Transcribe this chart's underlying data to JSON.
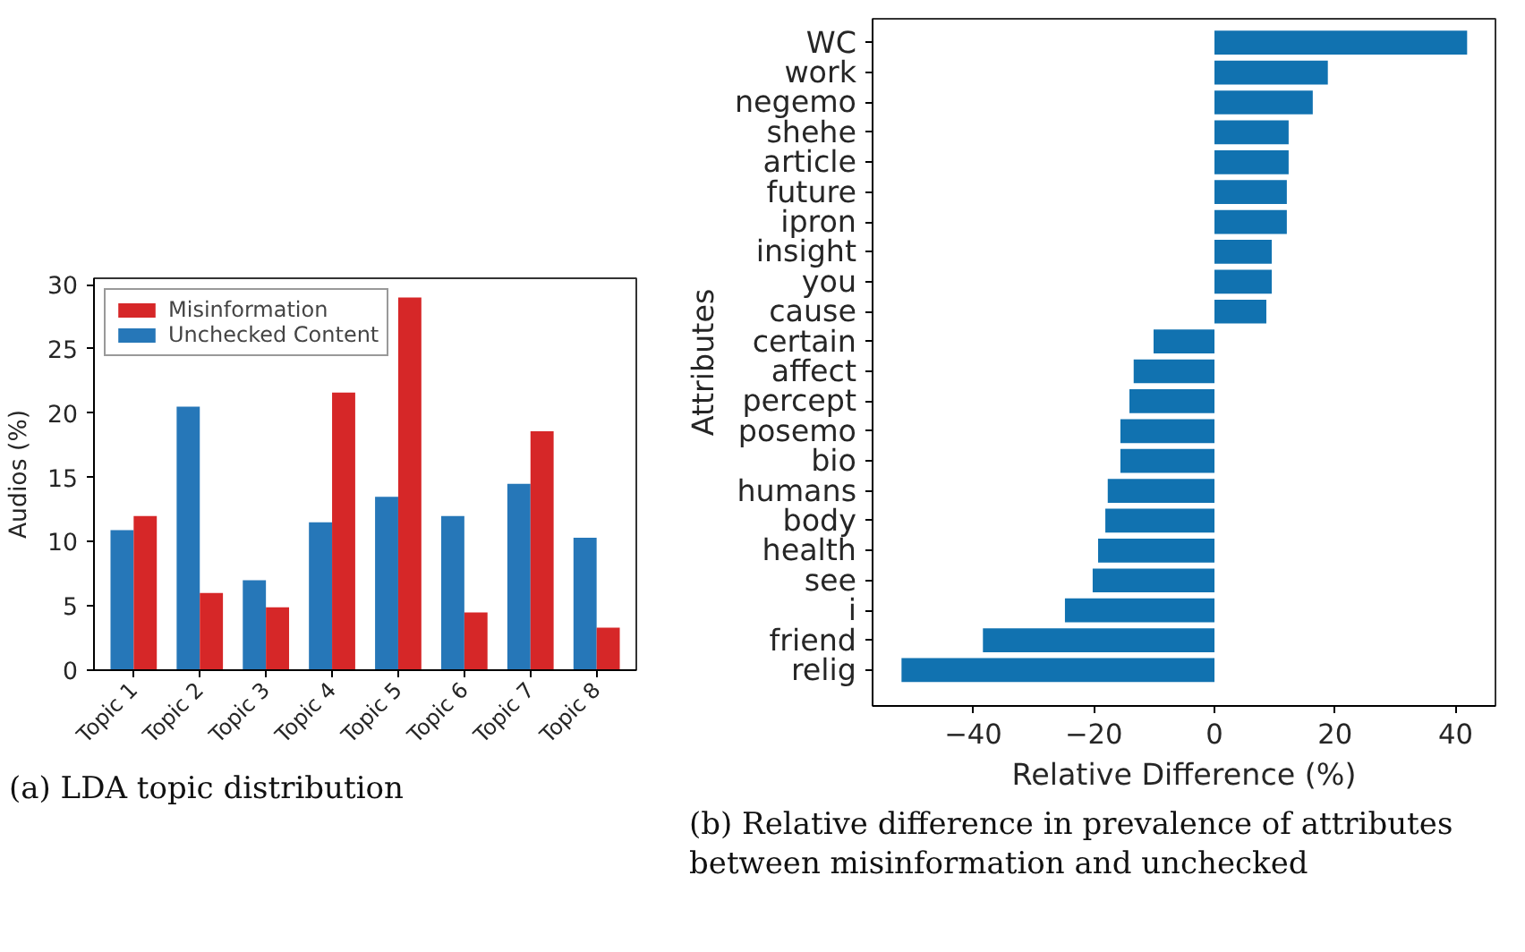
{
  "chart_data": [
    {
      "type": "bar",
      "categories": [
        "Topic 1",
        "Topic 2",
        "Topic 3",
        "Topic 4",
        "Topic 5",
        "Topic 6",
        "Topic 7",
        "Topic 8"
      ],
      "ylabel": "Audios (%)",
      "ylim": [
        0,
        30.5
      ],
      "yticks": [
        0,
        5,
        10,
        15,
        20,
        25,
        30
      ],
      "grid": false,
      "legend": "top left",
      "series": [
        {
          "name": "Unchecked Content",
          "color": "#2677b8",
          "values": [
            10.9,
            20.5,
            7.0,
            11.5,
            13.5,
            12.0,
            14.5,
            10.3
          ]
        },
        {
          "name": "Misinformation",
          "color": "#d62728",
          "values": [
            12.0,
            6.0,
            4.9,
            21.6,
            29.0,
            4.5,
            18.6,
            3.3
          ]
        }
      ],
      "annotations": [
        "(a) LDA topic distribution"
      ]
    },
    {
      "type": "bar",
      "orientation": "horizontal",
      "categories": [
        "WC",
        "work",
        "negemo",
        "shehe",
        "article",
        "future",
        "ipron",
        "insight",
        "you",
        "cause",
        "certain",
        "affect",
        "percept",
        "posemo",
        "bio",
        "humans",
        "body",
        "health",
        "see",
        "i",
        "friend",
        "relig"
      ],
      "xlabel": "Relative Difference (%)",
      "ylabel": "Attributes",
      "xlim": [
        -56.7,
        46.6
      ],
      "xticks": [
        {
          "value": -40,
          "label": "−40"
        },
        {
          "value": -20,
          "label": "−20"
        },
        0,
        20,
        40
      ],
      "grid": false,
      "series": [
        {
          "color": "#1172b0",
          "values": [
            41.9,
            18.8,
            16.3,
            12.3,
            12.3,
            12.0,
            12.0,
            9.5,
            9.5,
            8.6,
            -10.1,
            -13.4,
            -14.1,
            -15.6,
            -15.6,
            -17.7,
            -18.1,
            -19.3,
            -20.2,
            -24.8,
            -38.4,
            -51.9
          ]
        }
      ],
      "annotations": [
        "(b) Relative difference in prevalence of attributes between misinformation and unchecked"
      ]
    }
  ]
}
